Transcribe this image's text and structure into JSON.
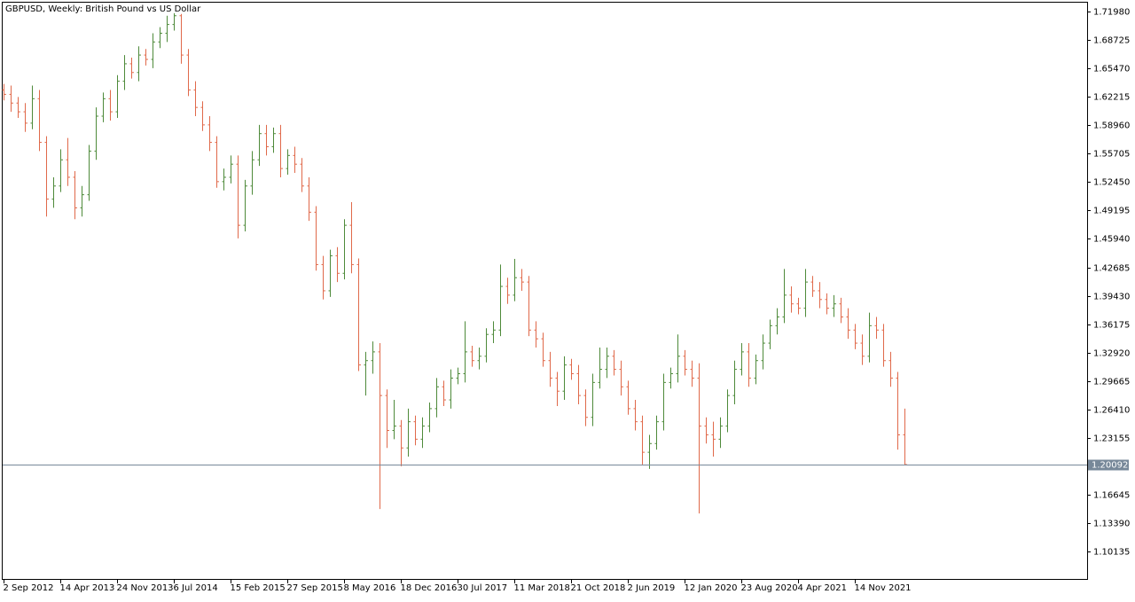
{
  "chart_data": {
    "type": "ohlc",
    "title": "GBPUSD, Weekly:  British Pound vs US Dollar",
    "up_color": "#4e8a3a",
    "down_color": "#e0694a",
    "xlim": [
      -0.125,
      152.75
    ],
    "ylim": [
      1.0689,
      1.73
    ],
    "xticks": [
      {
        "value": 0,
        "label": "2 Sep 2012"
      },
      {
        "value": 8,
        "label": "14 Apr 2013"
      },
      {
        "value": 16,
        "label": "24 Nov 2013"
      },
      {
        "value": 24,
        "label": "6 Jul 2014"
      },
      {
        "value": 32,
        "label": "15 Feb 2015"
      },
      {
        "value": 40,
        "label": "27 Sep 2015"
      },
      {
        "value": 48,
        "label": "8 May 2016"
      },
      {
        "value": 56,
        "label": "18 Dec 2016"
      },
      {
        "value": 64,
        "label": "30 Jul 2017"
      },
      {
        "value": 72,
        "label": "11 Mar 2018"
      },
      {
        "value": 80,
        "label": "21 Oct 2018"
      },
      {
        "value": 88,
        "label": "2 Jun 2019"
      },
      {
        "value": 96,
        "label": "12 Jan 2020"
      },
      {
        "value": 104,
        "label": "23 Aug 2020"
      },
      {
        "value": 112,
        "label": "4 Apr 2021"
      },
      {
        "value": 120,
        "label": "14 Nov 2021"
      }
    ],
    "yticks": [
      {
        "value": 1.7198,
        "label": "1.71980"
      },
      {
        "value": 1.68725,
        "label": "1.68725"
      },
      {
        "value": 1.6547,
        "label": "1.65470"
      },
      {
        "value": 1.62215,
        "label": "1.62215"
      },
      {
        "value": 1.5896,
        "label": "1.58960"
      },
      {
        "value": 1.55705,
        "label": "1.55705"
      },
      {
        "value": 1.5245,
        "label": "1.52450"
      },
      {
        "value": 1.49195,
        "label": "1.49195"
      },
      {
        "value": 1.4594,
        "label": "1.45940"
      },
      {
        "value": 1.42685,
        "label": "1.42685"
      },
      {
        "value": 1.3943,
        "label": "1.39430"
      },
      {
        "value": 1.36175,
        "label": "1.36175"
      },
      {
        "value": 1.3292,
        "label": "1.32920"
      },
      {
        "value": 1.29665,
        "label": "1.29665"
      },
      {
        "value": 1.2641,
        "label": "1.26410"
      },
      {
        "value": 1.23155,
        "label": "1.23155"
      },
      {
        "value": 1.16645,
        "label": "1.16645"
      },
      {
        "value": 1.1339,
        "label": "1.13390"
      },
      {
        "value": 1.10135,
        "label": "1.10135"
      }
    ],
    "last_price": {
      "value": 1.20092,
      "label": "1.20092"
    },
    "bars": [
      [
        1.63,
        1.637,
        1.618,
        1.625
      ],
      [
        1.625,
        1.635,
        1.605,
        1.615
      ],
      [
        1.615,
        1.622,
        1.598,
        1.605
      ],
      [
        1.605,
        1.615,
        1.582,
        1.592
      ],
      [
        1.592,
        1.635,
        1.585,
        1.62
      ],
      [
        1.62,
        1.63,
        1.56,
        1.57
      ],
      [
        1.57,
        1.577,
        1.485,
        1.505
      ],
      [
        1.505,
        1.53,
        1.495,
        1.52
      ],
      [
        1.52,
        1.562,
        1.513,
        1.55
      ],
      [
        1.55,
        1.575,
        1.52,
        1.53
      ],
      [
        1.53,
        1.537,
        1.482,
        1.495
      ],
      [
        1.495,
        1.52,
        1.485,
        1.51
      ],
      [
        1.51,
        1.567,
        1.503,
        1.56
      ],
      [
        1.56,
        1.61,
        1.55,
        1.6
      ],
      [
        1.6,
        1.627,
        1.593,
        1.62
      ],
      [
        1.62,
        1.63,
        1.595,
        1.605
      ],
      [
        1.605,
        1.647,
        1.598,
        1.64
      ],
      [
        1.64,
        1.67,
        1.63,
        1.66
      ],
      [
        1.66,
        1.667,
        1.643,
        1.65
      ],
      [
        1.65,
        1.68,
        1.64,
        1.67
      ],
      [
        1.67,
        1.677,
        1.658,
        1.665
      ],
      [
        1.665,
        1.695,
        1.655,
        1.685
      ],
      [
        1.685,
        1.702,
        1.678,
        1.695
      ],
      [
        1.695,
        1.715,
        1.685,
        1.705
      ],
      [
        1.705,
        1.718,
        1.698,
        1.715
      ],
      [
        1.715,
        1.717,
        1.66,
        1.67
      ],
      [
        1.67,
        1.677,
        1.623,
        1.63
      ],
      [
        1.63,
        1.64,
        1.6,
        1.61
      ],
      [
        1.61,
        1.617,
        1.583,
        1.59
      ],
      [
        1.59,
        1.6,
        1.56,
        1.57
      ],
      [
        1.57,
        1.577,
        1.518,
        1.525
      ],
      [
        1.525,
        1.54,
        1.515,
        1.53
      ],
      [
        1.53,
        1.555,
        1.523,
        1.545
      ],
      [
        1.545,
        1.555,
        1.46,
        1.475
      ],
      [
        1.475,
        1.527,
        1.468,
        1.52
      ],
      [
        1.52,
        1.56,
        1.51,
        1.55
      ],
      [
        1.55,
        1.59,
        1.543,
        1.58
      ],
      [
        1.58,
        1.59,
        1.555,
        1.565
      ],
      [
        1.565,
        1.587,
        1.558,
        1.58
      ],
      [
        1.58,
        1.59,
        1.53,
        1.54
      ],
      [
        1.54,
        1.562,
        1.533,
        1.555
      ],
      [
        1.555,
        1.565,
        1.535,
        1.545
      ],
      [
        1.545,
        1.552,
        1.513,
        1.52
      ],
      [
        1.52,
        1.53,
        1.48,
        1.49
      ],
      [
        1.49,
        1.497,
        1.423,
        1.43
      ],
      [
        1.43,
        1.44,
        1.39,
        1.4
      ],
      [
        1.4,
        1.447,
        1.393,
        1.44
      ],
      [
        1.44,
        1.45,
        1.41,
        1.42
      ],
      [
        1.42,
        1.482,
        1.413,
        1.475
      ],
      [
        1.475,
        1.5015,
        1.42,
        1.43
      ],
      [
        1.43,
        1.437,
        1.308,
        1.315
      ],
      [
        1.315,
        1.33,
        1.28,
        1.32
      ],
      [
        1.32,
        1.342,
        1.305,
        1.33
      ],
      [
        1.33,
        1.34,
        1.15,
        1.28
      ],
      [
        1.28,
        1.287,
        1.22,
        1.24
      ],
      [
        1.24,
        1.275,
        1.23,
        1.245
      ],
      [
        1.245,
        1.252,
        1.199,
        1.22
      ],
      [
        1.22,
        1.265,
        1.21,
        1.25
      ],
      [
        1.25,
        1.257,
        1.223,
        1.23
      ],
      [
        1.23,
        1.255,
        1.22,
        1.245
      ],
      [
        1.245,
        1.272,
        1.238,
        1.265
      ],
      [
        1.265,
        1.3,
        1.255,
        1.29
      ],
      [
        1.29,
        1.297,
        1.268,
        1.275
      ],
      [
        1.275,
        1.31,
        1.265,
        1.3
      ],
      [
        1.3,
        1.312,
        1.293,
        1.305
      ],
      [
        1.305,
        1.365,
        1.295,
        1.33
      ],
      [
        1.33,
        1.337,
        1.313,
        1.32
      ],
      [
        1.32,
        1.335,
        1.31,
        1.325
      ],
      [
        1.325,
        1.357,
        1.318,
        1.35
      ],
      [
        1.35,
        1.365,
        1.34,
        1.355
      ],
      [
        1.355,
        1.43,
        1.348,
        1.405
      ],
      [
        1.405,
        1.415,
        1.385,
        1.395
      ],
      [
        1.395,
        1.4365,
        1.388,
        1.415
      ],
      [
        1.415,
        1.425,
        1.4,
        1.41
      ],
      [
        1.41,
        1.417,
        1.348,
        1.355
      ],
      [
        1.355,
        1.365,
        1.335,
        1.345
      ],
      [
        1.345,
        1.352,
        1.313,
        1.32
      ],
      [
        1.32,
        1.33,
        1.29,
        1.3
      ],
      [
        1.3,
        1.307,
        1.268,
        1.285
      ],
      [
        1.285,
        1.325,
        1.275,
        1.315
      ],
      [
        1.315,
        1.322,
        1.298,
        1.305
      ],
      [
        1.305,
        1.315,
        1.27,
        1.28
      ],
      [
        1.28,
        1.287,
        1.245,
        1.255
      ],
      [
        1.255,
        1.305,
        1.245,
        1.295
      ],
      [
        1.295,
        1.335,
        1.288,
        1.31
      ],
      [
        1.31,
        1.335,
        1.3,
        1.325
      ],
      [
        1.325,
        1.332,
        1.303,
        1.31
      ],
      [
        1.31,
        1.32,
        1.28,
        1.29
      ],
      [
        1.29,
        1.297,
        1.258,
        1.265
      ],
      [
        1.265,
        1.275,
        1.24,
        1.25
      ],
      [
        1.25,
        1.257,
        1.201,
        1.215
      ],
      [
        1.215,
        1.235,
        1.196,
        1.225
      ],
      [
        1.225,
        1.257,
        1.218,
        1.25
      ],
      [
        1.25,
        1.305,
        1.24,
        1.295
      ],
      [
        1.295,
        1.312,
        1.288,
        1.305
      ],
      [
        1.305,
        1.35,
        1.295,
        1.325
      ],
      [
        1.325,
        1.332,
        1.303,
        1.31
      ],
      [
        1.31,
        1.32,
        1.29,
        1.3
      ],
      [
        1.3,
        1.317,
        1.145,
        1.245
      ],
      [
        1.245,
        1.255,
        1.225,
        1.235
      ],
      [
        1.235,
        1.25,
        1.21,
        1.23
      ],
      [
        1.23,
        1.255,
        1.22,
        1.245
      ],
      [
        1.245,
        1.287,
        1.238,
        1.28
      ],
      [
        1.28,
        1.32,
        1.27,
        1.31
      ],
      [
        1.31,
        1.34,
        1.303,
        1.33
      ],
      [
        1.33,
        1.34,
        1.29,
        1.3
      ],
      [
        1.3,
        1.327,
        1.293,
        1.32
      ],
      [
        1.32,
        1.35,
        1.31,
        1.34
      ],
      [
        1.34,
        1.367,
        1.333,
        1.36
      ],
      [
        1.36,
        1.38,
        1.35,
        1.37
      ],
      [
        1.37,
        1.425,
        1.363,
        1.395
      ],
      [
        1.395,
        1.405,
        1.375,
        1.385
      ],
      [
        1.385,
        1.392,
        1.373,
        1.38
      ],
      [
        1.38,
        1.425,
        1.37,
        1.41
      ],
      [
        1.41,
        1.417,
        1.393,
        1.4
      ],
      [
        1.4,
        1.41,
        1.38,
        1.39
      ],
      [
        1.39,
        1.397,
        1.373,
        1.38
      ],
      [
        1.38,
        1.395,
        1.37,
        1.385
      ],
      [
        1.385,
        1.392,
        1.363,
        1.37
      ],
      [
        1.37,
        1.38,
        1.345,
        1.355
      ],
      [
        1.355,
        1.362,
        1.333,
        1.34
      ],
      [
        1.34,
        1.35,
        1.315,
        1.325
      ],
      [
        1.325,
        1.375,
        1.318,
        1.36
      ],
      [
        1.36,
        1.37,
        1.345,
        1.355
      ],
      [
        1.355,
        1.362,
        1.313,
        1.32
      ],
      [
        1.32,
        1.33,
        1.29,
        1.3
      ],
      [
        1.3,
        1.307,
        1.218,
        1.235
      ],
      [
        1.235,
        1.265,
        1.2,
        1.20092
      ]
    ]
  }
}
